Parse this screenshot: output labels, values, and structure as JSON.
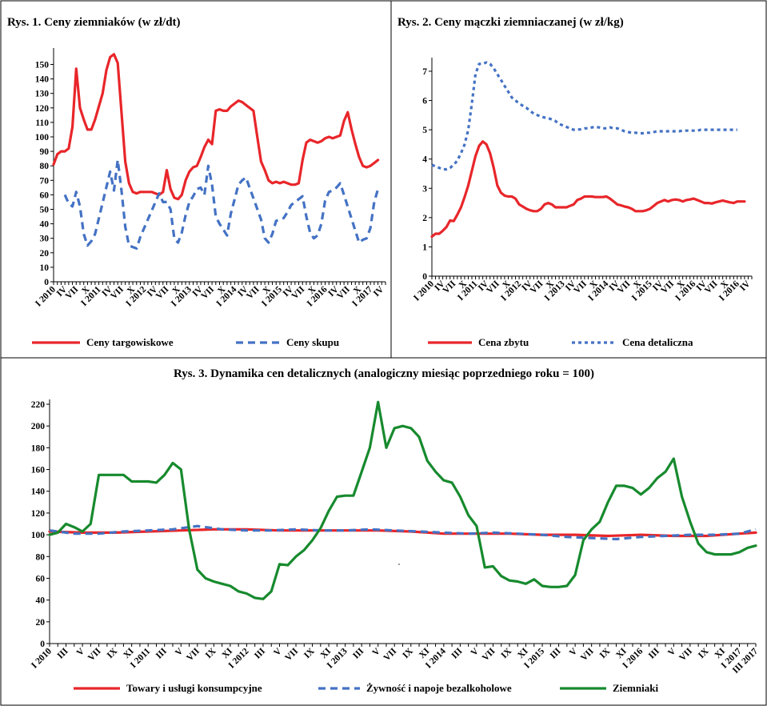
{
  "chart_data": [
    {
      "type": "line",
      "title": "Rys. 1. Ceny ziemniaków (w zł/dt)",
      "ylim": [
        0,
        158
      ],
      "yticks": [
        0,
        10,
        20,
        30,
        40,
        50,
        60,
        70,
        80,
        90,
        100,
        110,
        120,
        130,
        140,
        150
      ],
      "xlim": [
        0,
        88
      ],
      "xtick_labels": [
        "I 2010",
        "IV",
        "VII",
        "X",
        "I 2011",
        "IV",
        "VII",
        "X",
        "I 2012",
        "IV",
        "VII",
        "X",
        "I 2013",
        "IV",
        "VII",
        "X",
        "I 2014",
        "IV",
        "VII",
        "X",
        "I 2015",
        "IV",
        "VII",
        "X",
        "I 2016",
        "IV",
        "VII",
        "X",
        "I 2017",
        "IV"
      ],
      "legend_position": "bottom",
      "series": [
        {
          "name": "Ceny targowiskowe",
          "color": "#e8262a",
          "dash": "solid",
          "x": [
            0,
            1,
            2,
            3,
            4,
            5,
            6,
            7,
            8,
            9,
            10,
            11,
            12,
            13,
            14,
            15,
            16,
            17,
            18,
            19,
            20,
            21,
            22,
            23,
            24,
            25,
            26,
            27,
            28,
            29,
            30,
            31,
            32,
            33,
            34,
            35,
            36,
            37,
            38,
            39,
            40,
            41,
            42,
            43,
            44,
            45,
            46,
            47,
            48,
            49,
            50,
            51,
            52,
            53,
            54,
            55,
            56,
            57,
            58,
            59,
            60,
            61,
            62,
            63,
            64,
            65,
            66,
            67,
            68,
            69,
            70,
            71,
            72,
            73,
            74,
            75,
            76,
            77,
            78,
            79,
            80,
            81,
            82,
            83,
            84,
            85,
            86
          ],
          "values": [
            81,
            88,
            90,
            90,
            92,
            107,
            147,
            120,
            112,
            105,
            105,
            112,
            121,
            130,
            146,
            155,
            157,
            151,
            117,
            83,
            68,
            62,
            61,
            62,
            62,
            62,
            62,
            61,
            60,
            62,
            77,
            64,
            58,
            57,
            60,
            70,
            76,
            79,
            80,
            86,
            93,
            98,
            95,
            118,
            119,
            118,
            118,
            121,
            123,
            125,
            124,
            122,
            120,
            118,
            100,
            83,
            77,
            70,
            68,
            69,
            68,
            69,
            68,
            67,
            67,
            68,
            84,
            96,
            98,
            97,
            96,
            97,
            99,
            100,
            99,
            100,
            101,
            111,
            117,
            105,
            95,
            86,
            80,
            79,
            80,
            82,
            84
          ]
        },
        {
          "name": "Ceny skupu",
          "color": "#4472c4",
          "dash": "dashed",
          "x": [
            3,
            4,
            5,
            6,
            7,
            8,
            9,
            10,
            11,
            15,
            16,
            17,
            18,
            19,
            20,
            21,
            22,
            23,
            28,
            29,
            30,
            31,
            32,
            33,
            34,
            35,
            36,
            37,
            38,
            39,
            40,
            41,
            42,
            43,
            44,
            45,
            46,
            47,
            48,
            49,
            50,
            51,
            55,
            56,
            57,
            58,
            59,
            60,
            61,
            62,
            63,
            64,
            65,
            66,
            67,
            68,
            69,
            70,
            71,
            72,
            73,
            74,
            75,
            76,
            77,
            81,
            82,
            83,
            84,
            85,
            86
          ],
          "values": [
            60,
            54,
            52,
            62,
            52,
            33,
            25,
            28,
            33,
            76,
            63,
            84,
            63,
            38,
            25,
            24,
            23,
            31,
            61,
            55,
            55,
            50,
            30,
            27,
            34,
            46,
            55,
            59,
            64,
            65,
            60,
            80,
            67,
            45,
            40,
            36,
            32,
            47,
            57,
            67,
            70,
            72,
            43,
            30,
            27,
            33,
            42,
            43,
            44,
            48,
            53,
            55,
            57,
            59,
            45,
            34,
            30,
            32,
            40,
            56,
            62,
            63,
            65,
            68,
            60,
            27,
            29,
            30,
            37,
            55,
            64
          ]
        }
      ]
    },
    {
      "type": "line",
      "title": "Rys. 2. Ceny mączki ziemniaczanej (w zł/kg)",
      "ylim": [
        0,
        7.3
      ],
      "yticks": [
        0,
        1,
        2,
        3,
        4,
        5,
        6,
        7
      ],
      "xlim": [
        0,
        88
      ],
      "xtick_labels": [
        "I 2010",
        "IV",
        "VII",
        "X",
        "I 2011",
        "IV",
        "VII",
        "X",
        "I 2012",
        "IV",
        "VII",
        "X",
        "I 2013",
        "IV",
        "VII",
        "X",
        "I 2014",
        "IV",
        "VII",
        "X",
        "I 2015",
        "IV",
        "VII",
        "X",
        "I 2016",
        "IV",
        "VII",
        "X",
        "I 2016",
        "IV"
      ],
      "legend_position": "bottom",
      "series": [
        {
          "name": "Cena zbytu",
          "color": "#e8262a",
          "dash": "solid",
          "x": [
            0,
            1,
            2,
            3,
            4,
            5,
            6,
            7,
            8,
            9,
            10,
            11,
            12,
            13,
            14,
            15,
            16,
            17,
            18,
            19,
            20,
            21,
            22,
            23,
            24,
            25,
            26,
            27,
            28,
            29,
            30,
            31,
            32,
            33,
            34,
            35,
            36,
            37,
            38,
            39,
            40,
            41,
            42,
            43,
            44,
            45,
            46,
            47,
            48,
            49,
            50,
            51,
            52,
            53,
            54,
            55,
            56,
            57,
            58,
            59,
            60,
            61,
            62,
            63,
            64,
            65,
            66,
            67,
            68,
            69,
            70,
            71,
            72,
            73,
            74,
            75,
            76,
            77,
            78,
            79,
            80,
            81,
            82,
            83,
            84,
            85,
            86
          ],
          "values": [
            1.35,
            1.45,
            1.45,
            1.55,
            1.68,
            1.9,
            1.88,
            2.1,
            2.35,
            2.7,
            3.1,
            3.6,
            4.1,
            4.45,
            4.6,
            4.5,
            4.2,
            3.7,
            3.1,
            2.85,
            2.75,
            2.72,
            2.72,
            2.65,
            2.45,
            2.38,
            2.3,
            2.25,
            2.22,
            2.22,
            2.3,
            2.45,
            2.5,
            2.45,
            2.35,
            2.35,
            2.35,
            2.35,
            2.4,
            2.45,
            2.6,
            2.65,
            2.72,
            2.72,
            2.72,
            2.7,
            2.7,
            2.7,
            2.72,
            2.65,
            2.55,
            2.45,
            2.42,
            2.38,
            2.35,
            2.3,
            2.22,
            2.22,
            2.22,
            2.25,
            2.3,
            2.4,
            2.5,
            2.55,
            2.6,
            2.55,
            2.6,
            2.62,
            2.6,
            2.55,
            2.6,
            2.62,
            2.65,
            2.6,
            2.55,
            2.5,
            2.5,
            2.48,
            2.52,
            2.55,
            2.58,
            2.55,
            2.52,
            2.5,
            2.55,
            2.55,
            2.55
          ]
        },
        {
          "name": "Cena detaliczna",
          "color": "#4472c4",
          "dash": "dotted",
          "x": [
            0,
            1,
            2,
            3,
            4,
            5,
            6,
            7,
            8,
            9,
            10,
            11,
            12,
            13,
            14,
            15,
            16,
            17,
            18,
            19,
            20,
            21,
            22,
            23,
            24,
            25,
            26,
            27,
            28,
            29,
            30,
            31,
            32,
            33,
            34,
            35,
            36,
            37,
            38,
            39,
            40,
            41,
            42,
            43,
            44,
            45,
            46,
            47,
            48,
            49,
            50,
            51,
            52,
            53,
            54,
            55,
            56,
            57,
            58,
            59,
            60,
            61,
            62,
            63,
            64,
            65,
            66,
            67,
            68,
            69,
            70,
            71,
            72,
            73,
            74,
            75,
            76,
            77,
            78,
            79,
            80,
            81,
            82,
            83,
            84
          ],
          "values": [
            3.8,
            3.75,
            3.7,
            3.65,
            3.65,
            3.7,
            3.8,
            3.95,
            4.2,
            4.5,
            5.0,
            5.9,
            6.9,
            7.25,
            7.25,
            7.3,
            7.25,
            7.1,
            6.9,
            6.7,
            6.5,
            6.3,
            6.1,
            6.0,
            5.9,
            5.82,
            5.75,
            5.65,
            5.55,
            5.5,
            5.45,
            5.42,
            5.4,
            5.35,
            5.3,
            5.2,
            5.15,
            5.1,
            5.05,
            5.0,
            5.0,
            5.02,
            5.05,
            5.05,
            5.08,
            5.1,
            5.08,
            5.05,
            5.05,
            5.08,
            5.05,
            5.05,
            5.0,
            4.95,
            4.92,
            4.9,
            4.9,
            4.88,
            4.88,
            4.9,
            4.9,
            4.92,
            4.95,
            4.95,
            4.95,
            4.95,
            4.95,
            4.95,
            4.95,
            4.97,
            4.97,
            4.97,
            4.97,
            4.97,
            5.0,
            5.0,
            5.0,
            5.0,
            5.0,
            5.0,
            5.0,
            5.0,
            5.0,
            5.0,
            5.0
          ]
        }
      ]
    },
    {
      "type": "line",
      "title": "Rys. 3. Dynamika cen detalicznych (analogiczny miesiąc poprzedniego roku = 100)",
      "ylim": [
        0,
        220
      ],
      "yticks": [
        0,
        20,
        40,
        60,
        80,
        100,
        120,
        140,
        160,
        180,
        200,
        220
      ],
      "xlim": [
        0,
        86
      ],
      "xtick_labels": [
        "I 2010",
        "III",
        "V",
        "VII",
        "IX",
        "XI",
        "I 2011",
        "III",
        "V",
        "VII",
        "IX",
        "XI",
        "I 2012",
        "III",
        "V",
        "VII",
        "IX",
        "XI",
        "I 2013",
        "III",
        "V",
        "VII",
        "IX",
        "XI",
        "I 2014",
        "III",
        "V",
        "VII",
        "IX",
        "XI",
        "I 2015",
        "III",
        "V",
        "VII",
        "IX",
        "XI",
        "I 2016",
        "III",
        "V",
        "VII",
        "IX",
        "XI",
        "I 2017",
        "III 2017"
      ],
      "legend_position": "bottom",
      "series": [
        {
          "name": "Towary i usługi konsumpcyjne",
          "color": "#e8262a",
          "dash": "solid",
          "x": [
            0,
            4,
            8,
            12,
            16,
            20,
            24,
            28,
            32,
            36,
            40,
            44,
            48,
            52,
            56,
            60,
            64,
            68,
            72,
            76,
            80,
            84,
            86
          ],
          "values": [
            103,
            102,
            102,
            103,
            104,
            105,
            105,
            104,
            104,
            104,
            104,
            103,
            101,
            101,
            101,
            100,
            100,
            99,
            100,
            99,
            99,
            101,
            102
          ]
        },
        {
          "name": "Żywność i napoje bezalkoholowe",
          "color": "#4472c4",
          "dash": "dashed",
          "x": [
            0,
            3,
            6,
            9,
            12,
            15,
            18,
            21,
            24,
            27,
            30,
            33,
            36,
            39,
            42,
            45,
            48,
            51,
            54,
            57,
            60,
            63,
            66,
            69,
            72,
            75,
            78,
            81,
            84,
            86
          ],
          "values": [
            104,
            101,
            101,
            103,
            104,
            105,
            108,
            105,
            104,
            104,
            105,
            104,
            104,
            105,
            104,
            103,
            102,
            101,
            102,
            101,
            100,
            98,
            97,
            96,
            98,
            99,
            100,
            100,
            101,
            105
          ]
        },
        {
          "name": "Ziemniaki",
          "color": "#178a2e",
          "dash": "solid",
          "x": [
            0,
            1,
            2,
            3,
            4,
            5,
            6,
            7,
            8,
            9,
            10,
            11,
            12,
            13,
            14,
            15,
            16,
            17,
            18,
            19,
            20,
            21,
            22,
            23,
            24,
            25,
            26,
            27,
            28,
            29,
            30,
            31,
            32,
            33,
            34,
            35,
            36,
            37,
            38,
            39,
            40,
            41,
            42,
            43,
            44,
            45,
            46,
            47,
            48,
            49,
            50,
            51,
            52,
            53,
            54,
            55,
            56,
            57,
            58,
            59,
            60,
            61,
            62,
            63,
            64,
            65,
            66,
            67,
            68,
            69,
            70,
            71,
            72,
            73,
            74,
            75,
            76,
            77,
            78,
            79,
            80,
            81,
            82,
            83,
            84,
            85,
            86
          ],
          "values": [
            100,
            102,
            110,
            107,
            103,
            110,
            155,
            155,
            155,
            155,
            149,
            149,
            149,
            148,
            155,
            166,
            160,
            105,
            68,
            60,
            57,
            55,
            53,
            48,
            46,
            42,
            41,
            48,
            73,
            72,
            80,
            86,
            95,
            106,
            122,
            135,
            136,
            136,
            158,
            180,
            222,
            180,
            198,
            200,
            198,
            190,
            168,
            158,
            150,
            148,
            135,
            118,
            108,
            70,
            71,
            62,
            58,
            57,
            55,
            59,
            53,
            52,
            52,
            53,
            63,
            95,
            105,
            112,
            130,
            145,
            145,
            143,
            137,
            143,
            152,
            158,
            170,
            135,
            112,
            92,
            84,
            82,
            82,
            82,
            84,
            88,
            90
          ]
        }
      ]
    }
  ]
}
